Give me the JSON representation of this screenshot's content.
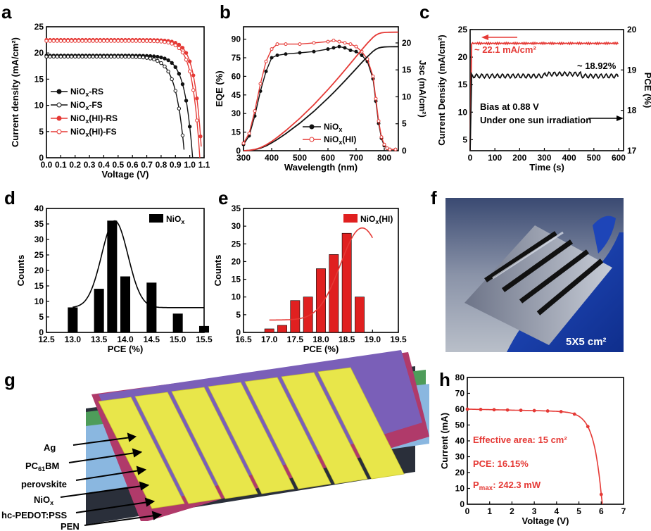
{
  "panel_labels": [
    "a",
    "b",
    "c",
    "d",
    "e",
    "f",
    "g",
    "h"
  ],
  "colors": {
    "black": "#111111",
    "red": "#e53935",
    "histblack": "#000000",
    "histred": "#e02020"
  },
  "chart_data": [
    {
      "id": "a",
      "type": "line",
      "xlabel": "Voltage (V)",
      "ylabel": "Current density (mA/cm²)",
      "xlim": [
        0,
        1.1
      ],
      "ylim": [
        0,
        25
      ],
      "xticks": [
        "0.0",
        "0.1",
        "0.2",
        "0.3",
        "0.4",
        "0.5",
        "0.6",
        "0.7",
        "0.8",
        "0.9",
        "1.0",
        "1.1"
      ],
      "yticks": [
        "0",
        "5",
        "10",
        "15",
        "20",
        "25"
      ],
      "legend": [
        "NiOx-RS",
        "NiOx-FS",
        "NiOx(HI)-RS",
        "NiOx(HI)-FS"
      ],
      "series": [
        {
          "name": "NiOx-RS",
          "color": "black",
          "marker": "filled",
          "jsc": 19.5,
          "voc": 1.02,
          "k": 0.055
        },
        {
          "name": "NiOx-FS",
          "color": "black",
          "marker": "open",
          "jsc": 19.3,
          "voc": 0.965,
          "k": 0.06
        },
        {
          "name": "NiOx(HI)-RS",
          "color": "red",
          "marker": "filled",
          "jsc": 22.5,
          "voc": 1.085,
          "k": 0.05
        },
        {
          "name": "NiOx(HI)-FS",
          "color": "red",
          "marker": "open",
          "jsc": 22.3,
          "voc": 1.07,
          "k": 0.052
        }
      ]
    },
    {
      "id": "b",
      "type": "line",
      "xlabel": "Wavelength (nm)",
      "ylabel": "EQE (%)",
      "y2label": "Jsc (mA/cm²)",
      "xlim": [
        300,
        850
      ],
      "ylim": [
        0,
        100
      ],
      "y2lim": [
        0,
        23
      ],
      "xticks": [
        "300",
        "400",
        "500",
        "600",
        "700",
        "800"
      ],
      "yticks": [
        "0",
        "15",
        "30",
        "45",
        "60",
        "75",
        "90"
      ],
      "y2ticks": [
        "0",
        "5",
        "10",
        "15",
        "20"
      ],
      "legend": [
        "NiOx",
        "NiOx(HI)"
      ],
      "series": [
        {
          "name": "NiOx",
          "color": "black",
          "x": [
            300,
            320,
            340,
            360,
            380,
            400,
            420,
            450,
            500,
            550,
            600,
            620,
            640,
            660,
            680,
            700,
            720,
            740,
            760,
            770,
            780,
            790,
            800,
            810,
            820,
            840
          ],
          "y": [
            5,
            12,
            28,
            48,
            64,
            75,
            77,
            78,
            79,
            80,
            82,
            83,
            84,
            83,
            81,
            80,
            77,
            72,
            58,
            40,
            22,
            10,
            4,
            2,
            1,
            1
          ]
        },
        {
          "name": "NiOx(HI)",
          "color": "red",
          "x": [
            300,
            320,
            340,
            360,
            380,
            400,
            420,
            450,
            500,
            550,
            600,
            620,
            640,
            660,
            680,
            700,
            720,
            740,
            760,
            770,
            780,
            790,
            800,
            810,
            820,
            840
          ],
          "y": [
            6,
            14,
            32,
            54,
            72,
            82,
            86,
            86,
            86,
            87,
            88,
            89,
            88,
            87,
            86,
            84,
            80,
            74,
            60,
            42,
            24,
            11,
            5,
            2,
            1,
            1
          ]
        }
      ],
      "integrated": [
        {
          "name": "NiOx",
          "color": "black",
          "jsc_max": 19.3
        },
        {
          "name": "NiOx(HI)",
          "color": "red",
          "jsc_max": 22.0
        }
      ]
    },
    {
      "id": "c",
      "type": "line",
      "xlabel": "Time (s)",
      "ylabel": "Current Density (mA/cm²)",
      "y2label": "PCE (%)",
      "xlim": [
        0,
        620
      ],
      "ylim": [
        3,
        25
      ],
      "y2lim": [
        17,
        20
      ],
      "xticks": [
        "0",
        "100",
        "200",
        "300",
        "400",
        "500",
        "600"
      ],
      "yticks": [
        "5",
        "10",
        "15",
        "20",
        "25"
      ],
      "y2ticks": [
        "17",
        "18",
        "19",
        "20"
      ],
      "annotations": [
        "~ 22.1 mA/cm²",
        "~ 18.92%",
        "Bias at 0.88 V",
        "Under one sun irradiation"
      ],
      "series": [
        {
          "name": "Current Density",
          "color": "red",
          "value": 22.5
        },
        {
          "name": "PCE",
          "color": "black",
          "value": 18.92
        }
      ]
    },
    {
      "id": "d",
      "type": "bar",
      "xlabel": "PCE (%)",
      "ylabel": "Counts",
      "xlim": [
        12.5,
        15.5
      ],
      "ylim": [
        0,
        40
      ],
      "xticks": [
        "12.5",
        "13.0",
        "13.5",
        "14.0",
        "14.5",
        "15.0",
        "15.5"
      ],
      "yticks": [
        "0",
        "5",
        "10",
        "15",
        "20",
        "25",
        "30",
        "35",
        "40"
      ],
      "legend": [
        "NiOx"
      ],
      "x": [
        13.0,
        13.25,
        13.5,
        13.75,
        14.0,
        14.25,
        14.5,
        14.75,
        15.0,
        15.25,
        15.5
      ],
      "values": [
        8,
        0,
        14,
        36,
        18,
        0,
        16,
        0,
        6,
        0,
        2
      ],
      "fit": {
        "mean": 13.8,
        "sigma": 0.25,
        "amp": 36,
        "base": 8
      }
    },
    {
      "id": "e",
      "type": "bar",
      "xlabel": "PCE (%)",
      "ylabel": "Counts",
      "xlim": [
        16.5,
        19.5
      ],
      "ylim": [
        0,
        35
      ],
      "xticks": [
        "16.5",
        "17.0",
        "17.5",
        "18.0",
        "18.5",
        "19.0",
        "19.5"
      ],
      "yticks": [
        "0",
        "5",
        "10",
        "15",
        "20",
        "25",
        "30",
        "35"
      ],
      "legend": [
        "NiOx(HI)"
      ],
      "x": [
        17.0,
        17.25,
        17.5,
        17.75,
        18.0,
        18.25,
        18.5,
        18.75,
        19.0
      ],
      "values": [
        1,
        2,
        9,
        10,
        18,
        22,
        28,
        10,
        0
      ],
      "fit": {
        "mean": 18.8,
        "sigma": 0.42,
        "amp": 29.5,
        "base": 3.5
      }
    },
    {
      "id": "h",
      "type": "line",
      "xlabel": "Voltage (V)",
      "ylabel": "Current (mA)",
      "xlim": [
        0,
        7
      ],
      "ylim": [
        0,
        80
      ],
      "xticks": [
        "0",
        "1",
        "2",
        "3",
        "4",
        "5",
        "6",
        "7"
      ],
      "yticks": [
        "0",
        "10",
        "20",
        "30",
        "40",
        "50",
        "60",
        "70",
        "80"
      ],
      "annotations": [
        "Effective area: 15 cm²",
        "PCE: 16.15%",
        "Pmax: 242.3 mW"
      ],
      "series": [
        {
          "name": "IV",
          "color": "red",
          "isc": 60,
          "voc": 6.05,
          "k": 0.35
        }
      ]
    }
  ],
  "photo": {
    "caption": "5X5 cm²"
  },
  "device": {
    "layers": [
      "Ag",
      "PC61BM",
      "perovskite",
      "NiOx",
      "hc-PEDOT:PSS",
      "PEN"
    ]
  }
}
